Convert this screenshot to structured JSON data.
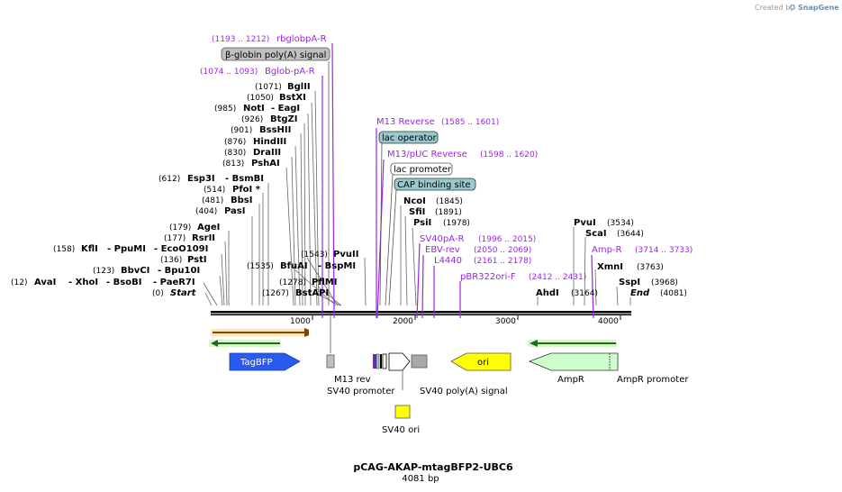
{
  "watermark": "Created by",
  "brand": "SnapGene",
  "title": "pCAG-AKAP-mtagBFP2-UBC6",
  "size_label": "4081 bp",
  "axis_ticks": [
    "1000",
    "2000",
    "3000",
    "4000"
  ],
  "enzymes": {
    "start": {
      "name": "Start",
      "pos": "(0)"
    },
    "avai": {
      "name": "AvaI",
      "pos": "(12)"
    },
    "xhoi": {
      "name": "XhoI"
    },
    "bsobi": {
      "name": "BsoBI"
    },
    "paer7i": {
      "name": "PaeR7I"
    },
    "bbvci": {
      "name": "BbvCI",
      "pos": "(123)"
    },
    "bpu10i": {
      "name": "Bpu10I"
    },
    "psti": {
      "name": "PstI",
      "pos": "(136)"
    },
    "kfli": {
      "name": "KflI",
      "pos": "(158)"
    },
    "ppumi": {
      "name": "PpuMI"
    },
    "eco0109i": {
      "name": "EcoO109I"
    },
    "rsrii": {
      "name": "RsrII",
      "pos": "(177)"
    },
    "agei": {
      "name": "AgeI",
      "pos": "(179)"
    },
    "pasi": {
      "name": "PasI",
      "pos": "(404)"
    },
    "bbsi": {
      "name": "BbsI",
      "pos": "(481)"
    },
    "pfoi": {
      "name": "PfoI *",
      "pos": "(514)"
    },
    "esp3i": {
      "name": "Esp3I",
      "pos": "(612)"
    },
    "bsmbi": {
      "name": "BsmBI"
    },
    "pshai": {
      "name": "PshAI",
      "pos": "(813)"
    },
    "draiii": {
      "name": "DraIII",
      "pos": "(830)"
    },
    "hindiii": {
      "name": "HindIII",
      "pos": "(876)"
    },
    "bsshii": {
      "name": "BssHII",
      "pos": "(901)"
    },
    "btgzi": {
      "name": "BtgZI",
      "pos": "(926)"
    },
    "noti": {
      "name": "NotI",
      "pos": "(985)"
    },
    "eagi": {
      "name": "EagI"
    },
    "bstxi": {
      "name": "BstXI",
      "pos": "(1050)"
    },
    "bglii": {
      "name": "BglII",
      "pos": "(1071)"
    },
    "bfuai": {
      "name": "BfuAI",
      "pos": "(1535)"
    },
    "bspmi": {
      "name": "BspMI"
    },
    "pvuii": {
      "name": "PvuII",
      "pos": "(1543)"
    },
    "pflmi": {
      "name": "PflMI",
      "pos": "(1278)"
    },
    "bstapi": {
      "name": "BstAPI",
      "pos": "(1267)"
    },
    "ncoi": {
      "name": "NcoI",
      "pos": "(1845)"
    },
    "sfii": {
      "name": "SfiI",
      "pos": "(1891)"
    },
    "psii": {
      "name": "PsiI",
      "pos": "(1978)"
    },
    "ahdi": {
      "name": "AhdI",
      "pos": "(3164)"
    },
    "pvui": {
      "name": "PvuI",
      "pos": "(3534)"
    },
    "scai": {
      "name": "ScaI",
      "pos": "(3644)"
    },
    "xmni": {
      "name": "XmnI",
      "pos": "(3763)"
    },
    "sspi": {
      "name": "SspI",
      "pos": "(3968)"
    },
    "end": {
      "name": "End",
      "pos": "(4081)"
    }
  },
  "primers": {
    "rbglobpa_r": {
      "name": "rbglobpA-R",
      "range": "(1193 .. 1212)"
    },
    "bglob_pa_r": {
      "name": "Bglob-pA-R",
      "range": "(1074 .. 1093)"
    },
    "m13_reverse": {
      "name": "M13 Reverse",
      "range": "(1585 .. 1601)"
    },
    "m13_puc_reverse": {
      "name": "M13/pUC Reverse",
      "range": "(1598 .. 1620)"
    },
    "sv40pa_r": {
      "name": "SV40pA-R",
      "range": "(1996 .. 2015)"
    },
    "ebv_rev": {
      "name": "EBV-rev",
      "range": "(2050 .. 2069)"
    },
    "l4440": {
      "name": "L4440",
      "range": "(2161 .. 2178)"
    },
    "pbr322ori_f": {
      "name": "pBR322ori-F",
      "range": "(2412 .. 2431)"
    },
    "amp_r": {
      "name": "Amp-R",
      "range": "(3714 .. 3733)"
    }
  },
  "boxed_features": {
    "beta_globin": "β-globin poly(A) signal",
    "lac_operator": "lac operator",
    "lac_promoter": "lac promoter",
    "cap_site": "CAP binding site"
  },
  "features": {
    "tagbfp": "TagBFP",
    "m13_rev": "M13 rev",
    "sv40_promoter": "SV40 promoter",
    "sv40_polya": "SV40 poly(A) signal",
    "ori": "ori",
    "ampr": "AmpR",
    "ampr_promoter": "AmpR promoter",
    "sv40_ori": "SV40 ori"
  },
  "colors": {
    "primer": "#a020f0",
    "tagbfp": "#2a5bf0",
    "ori": "#ffff00",
    "ampr": "#ccffcc",
    "lac": "#99c9cf",
    "gray_box": "#c0c0c0",
    "sv40_box": "#a6a8ad"
  }
}
